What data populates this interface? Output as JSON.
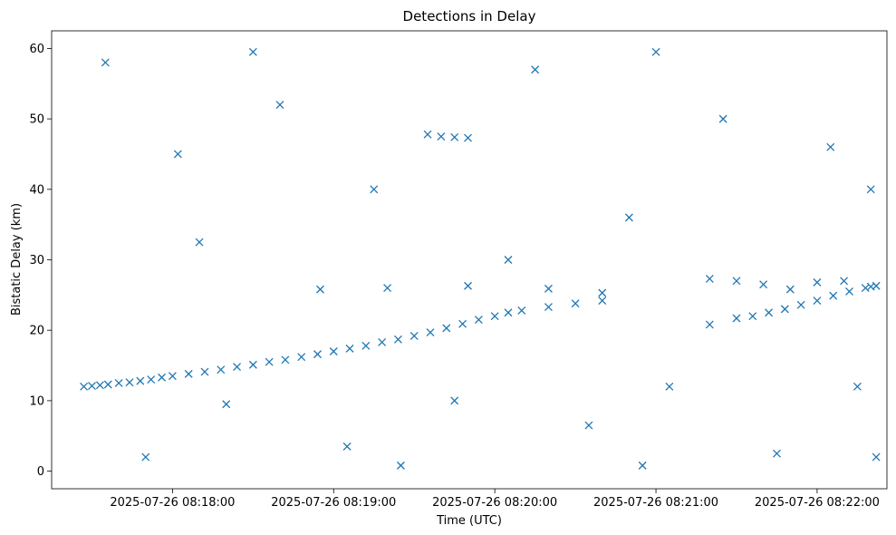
{
  "chart_data": {
    "type": "scatter",
    "title": "Detections in Delay",
    "xlabel": "Time (UTC)",
    "ylabel": "Bistatic Delay (km)",
    "marker": "x",
    "color": "#1f77b4",
    "grid": false,
    "xlim": [
      "2025-07-26 08:17:15",
      "2025-07-26 08:22:26"
    ],
    "ylim": [
      -2.5,
      62.5
    ],
    "x_ticks": [
      "2025-07-26 08:18:00",
      "2025-07-26 08:19:00",
      "2025-07-26 08:20:00",
      "2025-07-26 08:21:00",
      "2025-07-26 08:22:00"
    ],
    "y_ticks": [
      0,
      10,
      20,
      30,
      40,
      50,
      60
    ],
    "series": [
      {
        "points": [
          [
            "2025-07-26 08:17:27",
            12.0
          ],
          [
            "2025-07-26 08:17:30",
            12.1
          ],
          [
            "2025-07-26 08:17:33",
            12.2
          ],
          [
            "2025-07-26 08:17:36",
            12.3
          ],
          [
            "2025-07-26 08:17:40",
            12.5
          ],
          [
            "2025-07-26 08:17:44",
            12.6
          ],
          [
            "2025-07-26 08:17:48",
            12.8
          ],
          [
            "2025-07-26 08:17:52",
            13.0
          ],
          [
            "2025-07-26 08:17:56",
            13.3
          ],
          [
            "2025-07-26 08:18:00",
            13.5
          ],
          [
            "2025-07-26 08:18:06",
            13.8
          ],
          [
            "2025-07-26 08:18:12",
            14.1
          ],
          [
            "2025-07-26 08:18:18",
            14.4
          ],
          [
            "2025-07-26 08:18:24",
            14.8
          ],
          [
            "2025-07-26 08:18:30",
            15.1
          ],
          [
            "2025-07-26 08:18:36",
            15.5
          ],
          [
            "2025-07-26 08:18:42",
            15.8
          ],
          [
            "2025-07-26 08:18:48",
            16.2
          ],
          [
            "2025-07-26 08:18:54",
            16.6
          ],
          [
            "2025-07-26 08:19:00",
            17.0
          ],
          [
            "2025-07-26 08:19:06",
            17.4
          ],
          [
            "2025-07-26 08:19:12",
            17.8
          ],
          [
            "2025-07-26 08:19:18",
            18.3
          ],
          [
            "2025-07-26 08:19:24",
            18.7
          ],
          [
            "2025-07-26 08:19:30",
            19.2
          ],
          [
            "2025-07-26 08:19:36",
            19.7
          ],
          [
            "2025-07-26 08:19:42",
            20.3
          ],
          [
            "2025-07-26 08:19:48",
            20.9
          ],
          [
            "2025-07-26 08:19:54",
            21.5
          ],
          [
            "2025-07-26 08:20:00",
            22.0
          ],
          [
            "2025-07-26 08:20:05",
            22.5
          ],
          [
            "2025-07-26 08:20:10",
            22.8
          ],
          [
            "2025-07-26 08:20:20",
            23.3
          ],
          [
            "2025-07-26 08:20:30",
            23.8
          ],
          [
            "2025-07-26 08:20:40",
            24.2
          ],
          [
            "2025-07-26 08:21:20",
            20.8
          ],
          [
            "2025-07-26 08:21:30",
            21.7
          ],
          [
            "2025-07-26 08:21:36",
            22.0
          ],
          [
            "2025-07-26 08:21:42",
            22.5
          ],
          [
            "2025-07-26 08:21:48",
            23.0
          ],
          [
            "2025-07-26 08:21:54",
            23.6
          ],
          [
            "2025-07-26 08:22:00",
            24.2
          ],
          [
            "2025-07-26 08:22:06",
            24.9
          ],
          [
            "2025-07-26 08:22:12",
            25.5
          ],
          [
            "2025-07-26 08:22:18",
            26.0
          ],
          [
            "2025-07-26 08:22:22",
            26.3
          ],
          [
            "2025-07-26 08:18:55",
            25.8
          ],
          [
            "2025-07-26 08:19:20",
            26.0
          ],
          [
            "2025-07-26 08:19:50",
            26.3
          ],
          [
            "2025-07-26 08:20:20",
            25.9
          ],
          [
            "2025-07-26 08:20:40",
            25.3
          ],
          [
            "2025-07-26 08:21:20",
            27.3
          ],
          [
            "2025-07-26 08:21:30",
            27.0
          ],
          [
            "2025-07-26 08:21:40",
            26.5
          ],
          [
            "2025-07-26 08:21:50",
            25.8
          ],
          [
            "2025-07-26 08:22:00",
            26.8
          ],
          [
            "2025-07-26 08:22:10",
            27.0
          ],
          [
            "2025-07-26 08:22:20",
            26.2
          ],
          [
            "2025-07-26 08:19:35",
            47.8
          ],
          [
            "2025-07-26 08:19:40",
            47.5
          ],
          [
            "2025-07-26 08:19:45",
            47.4
          ],
          [
            "2025-07-26 08:19:50",
            47.3
          ],
          [
            "2025-07-26 08:17:35",
            58.0
          ],
          [
            "2025-07-26 08:17:50",
            2.0
          ],
          [
            "2025-07-26 08:18:02",
            45.0
          ],
          [
            "2025-07-26 08:18:20",
            9.5
          ],
          [
            "2025-07-26 08:18:40",
            52.0
          ],
          [
            "2025-07-26 08:19:05",
            3.5
          ],
          [
            "2025-07-26 08:19:15",
            40.0
          ],
          [
            "2025-07-26 08:19:45",
            10.0
          ],
          [
            "2025-07-26 08:20:15",
            57.0
          ],
          [
            "2025-07-26 08:20:35",
            6.5
          ],
          [
            "2025-07-26 08:20:50",
            36.0
          ],
          [
            "2025-07-26 08:21:05",
            12.0
          ],
          [
            "2025-07-26 08:21:25",
            50.0
          ],
          [
            "2025-07-26 08:21:45",
            2.5
          ],
          [
            "2025-07-26 08:22:05",
            46.0
          ],
          [
            "2025-07-26 08:22:15",
            12.0
          ],
          [
            "2025-07-26 08:22:20",
            40.0
          ],
          [
            "2025-07-26 08:22:22",
            2.0
          ],
          [
            "2025-07-26 08:18:10",
            32.5
          ],
          [
            "2025-07-26 08:20:05",
            30.0
          ],
          [
            "2025-07-26 08:19:25",
            0.8
          ],
          [
            "2025-07-26 08:20:55",
            0.8
          ],
          [
            "2025-07-26 08:21:00",
            59.5
          ],
          [
            "2025-07-26 08:18:30",
            59.5
          ]
        ]
      }
    ]
  }
}
